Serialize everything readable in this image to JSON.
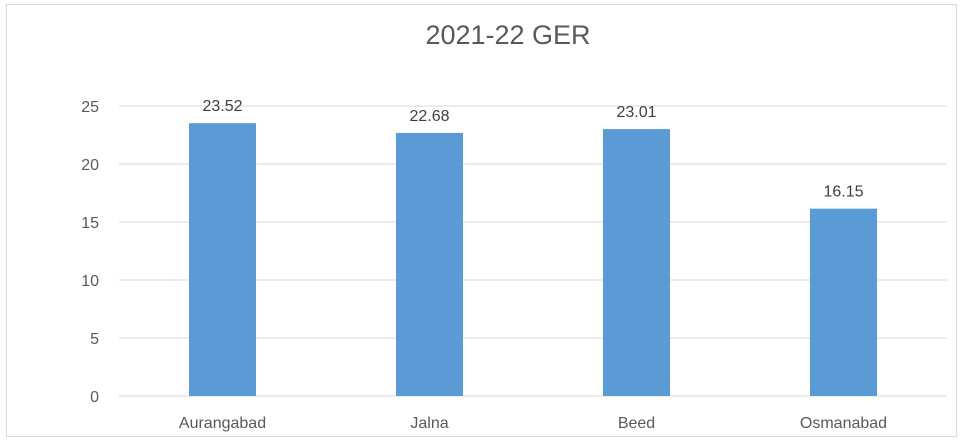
{
  "chart_data": {
    "type": "bar",
    "title": "2021-22 GER",
    "categories": [
      "Aurangabad",
      "Jalna",
      "Beed",
      "Osmanabad"
    ],
    "values": [
      23.52,
      22.68,
      23.01,
      16.15
    ],
    "data_labels": [
      "23.52",
      "22.68",
      "23.01",
      "16.15"
    ],
    "y_ticks": [
      "0",
      "5",
      "10",
      "15",
      "20",
      "25"
    ],
    "ylim": [
      0,
      25
    ],
    "xlabel": "",
    "ylabel": "",
    "grid": true,
    "legend": "none",
    "bar_color": "#5b9bd5",
    "grid_color": "#d9d9d9"
  }
}
